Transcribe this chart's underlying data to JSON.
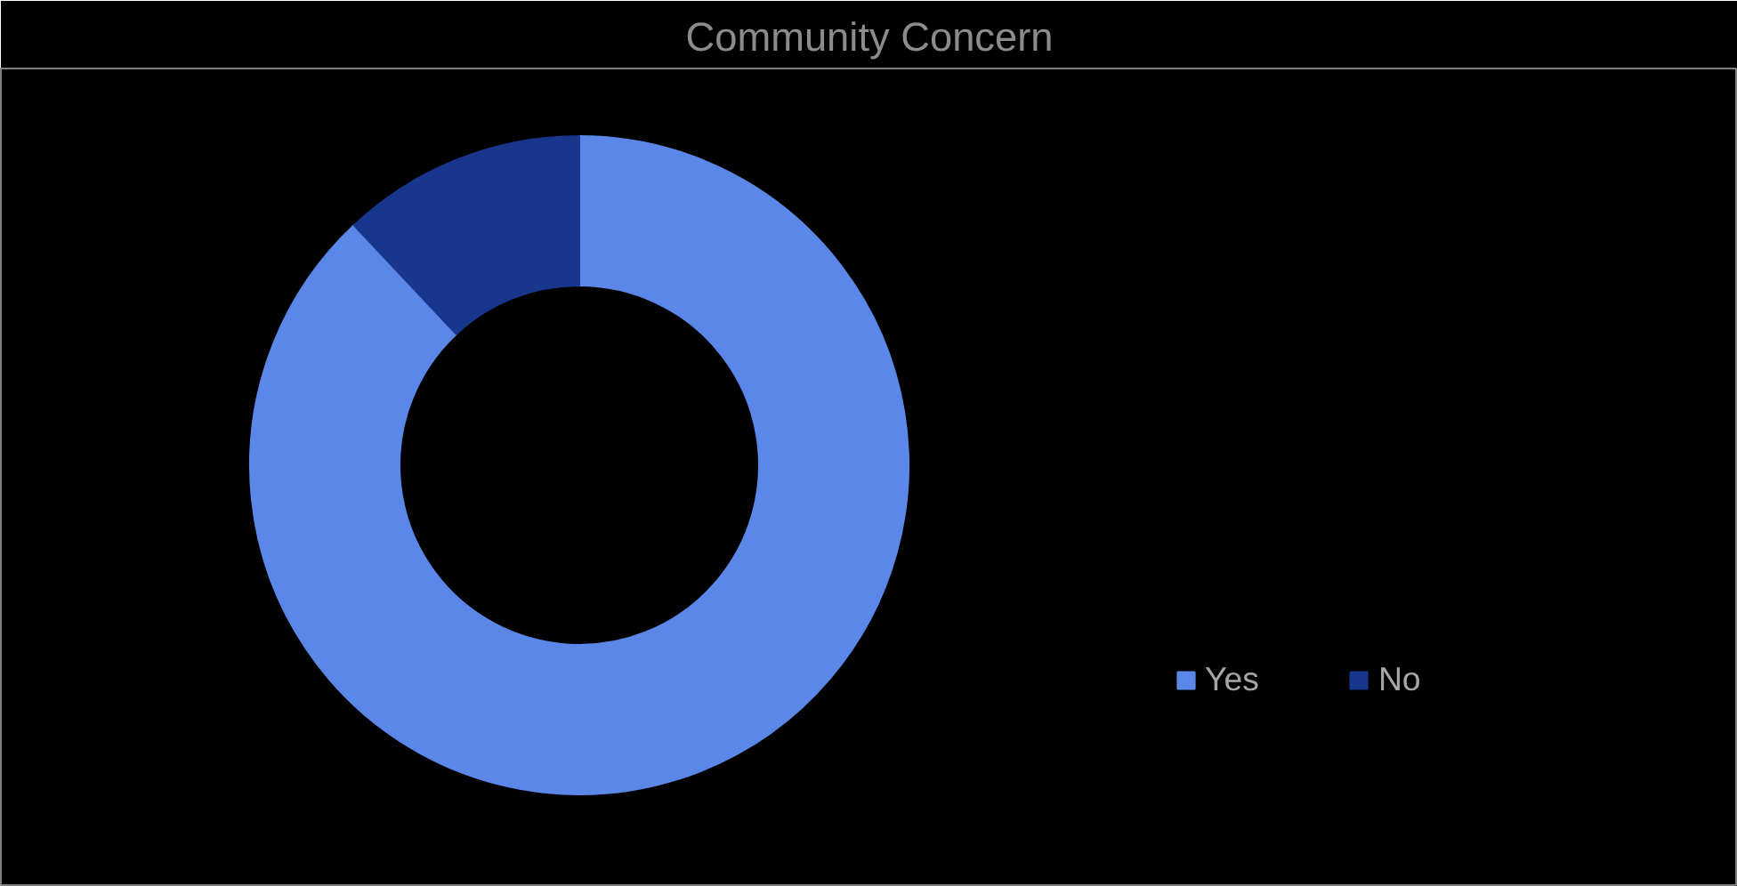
{
  "chart_data": {
    "type": "donut",
    "title": "Community Concern",
    "categories": [
      "Yes",
      "No"
    ],
    "values": [
      88,
      12
    ],
    "colors": [
      "#5b87e8",
      "#17368c"
    ],
    "legend": "right"
  }
}
